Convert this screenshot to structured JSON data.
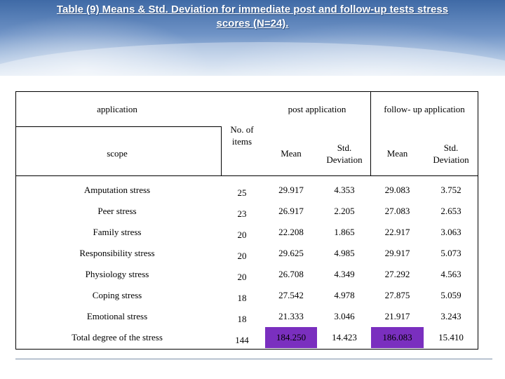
{
  "title": {
    "line1": "Table (9) Means & Std. Deviation for immediate post and follow-up tests stress",
    "line2": "scores (N=24)."
  },
  "header": {
    "application": "application",
    "post_application": "post application",
    "follow_up_application": "follow- up application",
    "scope": "scope",
    "items": "No. of items",
    "mean": "Mean",
    "std": "Std. Deviation"
  },
  "rows": [
    {
      "scope": "Amputation stress",
      "items": "25",
      "post_mean": "29.917",
      "post_std": "4.353",
      "fu_mean": "29.083",
      "fu_std": "3.752"
    },
    {
      "scope": "Peer stress",
      "items": "23",
      "post_mean": "26.917",
      "post_std": "2.205",
      "fu_mean": "27.083",
      "fu_std": "2.653"
    },
    {
      "scope": "Family stress",
      "items": "20",
      "post_mean": "22.208",
      "post_std": "1.865",
      "fu_mean": "22.917",
      "fu_std": "3.063"
    },
    {
      "scope": "Responsibility stress",
      "items": "20",
      "post_mean": "29.625",
      "post_std": "4.985",
      "fu_mean": "29.917",
      "fu_std": "5.073"
    },
    {
      "scope": "Physiology stress",
      "items": "20",
      "post_mean": "26.708",
      "post_std": "4.349",
      "fu_mean": "27.292",
      "fu_std": "4.563"
    },
    {
      "scope": "Coping stress",
      "items": "18",
      "post_mean": "27.542",
      "post_std": "4.978",
      "fu_mean": "27.875",
      "fu_std": "5.059"
    },
    {
      "scope": "Emotional stress",
      "items": "18",
      "post_mean": "21.333",
      "post_std": "3.046",
      "fu_mean": "21.917",
      "fu_std": "3.243"
    },
    {
      "scope": "Total degree of the stress",
      "items": "144",
      "post_mean": "184.250",
      "post_std": "14.423",
      "fu_mean": "186.083",
      "fu_std": "15.410"
    }
  ],
  "colors": {
    "highlight": "#7a2fbf",
    "header_band": "#5a82bb"
  }
}
